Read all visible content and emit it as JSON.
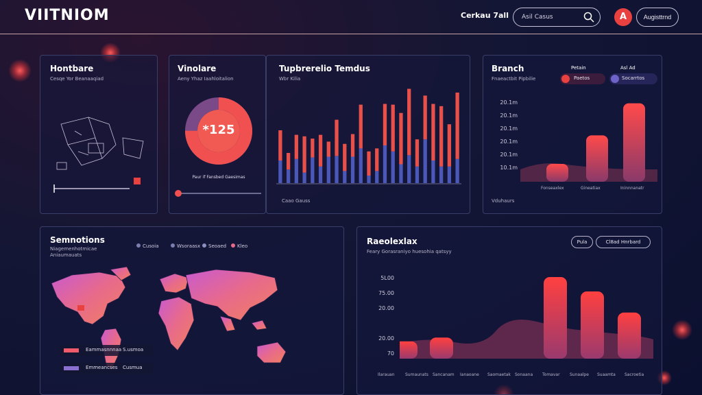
{
  "header": {
    "logo": "VIITNIOM",
    "user_name": "Cerkau 7all",
    "search_placeholder": "Asil Casus",
    "avatar_letter": "A",
    "account_label": "Augisttrnd"
  },
  "hardware": {
    "title": "Hontbare",
    "subtitle": "Cesqe Yor Beanaaqiad"
  },
  "vinolare": {
    "title": "Vinolare",
    "subtitle": "Aeny Yhaz Iaahloitalion",
    "value": "*125",
    "caption": "Paur if Fansbed Gaesimas",
    "percent": 75
  },
  "trends": {
    "title": "Tupbrerelio Temdus",
    "subtitle": "Wbr Kilia",
    "footer": "Caao Gauss"
  },
  "branch": {
    "title": "Branch",
    "subtitle": "Fnaeactbit Pipbilie",
    "legend": [
      {
        "label": "Petain",
        "tag": "Paetos",
        "color": "#e8413f"
      },
      {
        "label": "Asl Ad",
        "tag": "Socarrtos",
        "color": "#6e63c9"
      }
    ],
    "y_ticks": [
      "20.1m",
      "20.1m",
      "20.1m",
      "20.1m",
      "20.1m",
      "10.1m"
    ],
    "x_labels": [
      "Fonseaxlex",
      "Gineatiax",
      "Ininnnanatr"
    ],
    "footer": "Vduhaurs"
  },
  "sessions": {
    "title": "Semnotions",
    "subtitle_1": "Niagemenhotmicae",
    "subtitle_2": "Aniaumauats",
    "legend": [
      "Cusoia",
      "Wsoraasx",
      "Seoaed",
      "Kleo"
    ],
    "map_legend": [
      {
        "label": "Eammasnnnaa",
        "value": "S.usmoa",
        "color": "#f05a6a"
      },
      {
        "label": "Emmeancses",
        "value": "Cusmua",
        "color": "#8a6ed0"
      }
    ]
  },
  "realtime": {
    "title": "Raeolexlax",
    "subtitle": "Feary Gorasraniyo huesohia qatsyy",
    "btn_1": "Pula",
    "btn_2": "Cl8ad Hnrbard",
    "y_ticks": [
      "5L00",
      "75.00",
      "20.00",
      "20.00",
      "70"
    ],
    "x_labels": [
      "Ilarauan",
      "Sumaunats",
      "Sancanam",
      "Ianaoane",
      "Saomaetak",
      "Sonaana",
      "Tomavar",
      "Sunaalpe",
      "Suaamta",
      "Sacroetia"
    ]
  },
  "chart_data": [
    {
      "type": "bar",
      "title": "Tupbrerelio Temdus",
      "series": [
        {
          "values": [
            40,
            22,
            32,
            48,
            25,
            42,
            20,
            48,
            36,
            30,
            58,
            32,
            30,
            55,
            62,
            68,
            88,
            36,
            58,
            75,
            80,
            56,
            88
          ]
        },
        {
          "values": [
            30,
            18,
            32,
            14,
            34,
            22,
            35,
            36,
            16,
            35,
            46,
            10,
            16,
            50,
            42,
            25,
            37,
            22,
            58,
            30,
            22,
            22,
            32
          ]
        }
      ]
    },
    {
      "type": "bar",
      "title": "Branch",
      "categories": [
        "Fonseaxlex",
        "Gineatiax",
        "Ininnnanatr"
      ],
      "values": [
        20,
        52,
        88
      ],
      "ylim": [
        0,
        100
      ]
    },
    {
      "type": "bar",
      "title": "Raeolexlax",
      "values": [
        18,
        22,
        85,
        70,
        48
      ],
      "ylim": [
        0,
        100
      ]
    }
  ],
  "gauge": {
    "percent": 75
  }
}
